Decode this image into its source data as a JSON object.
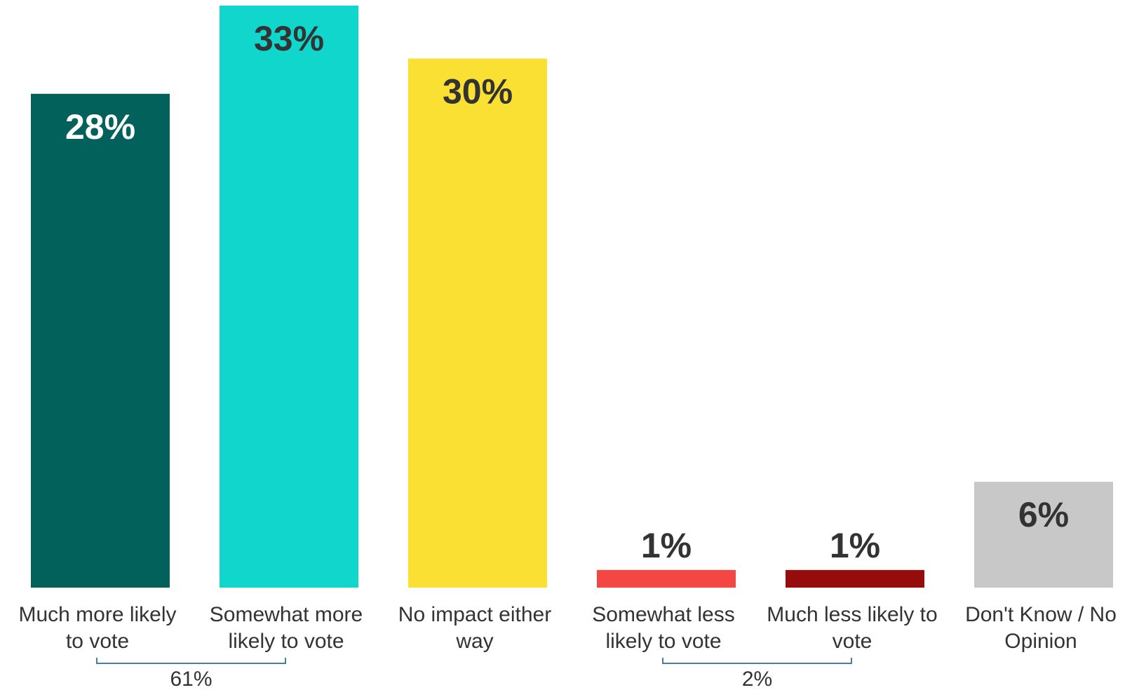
{
  "chart_data": {
    "type": "bar",
    "categories": [
      "Much more likely to vote",
      "Somewhat more likely to vote",
      "No impact either way",
      "Somewhat less likely to vote",
      "Much less likely to vote",
      "Don't Know / No Opinion"
    ],
    "category_lines": [
      [
        "Much more likely",
        "to vote"
      ],
      [
        "Somewhat more",
        "likely to vote"
      ],
      [
        "No impact either",
        "way"
      ],
      [
        "Somewhat less",
        "likely to vote"
      ],
      [
        "Much less likely to",
        "vote"
      ],
      [
        "Don't Know / No",
        "Opinion"
      ]
    ],
    "values": [
      28,
      33,
      30,
      1,
      1,
      6
    ],
    "data_labels": [
      "28%",
      "33%",
      "30%",
      "1%",
      "1%",
      "6%"
    ],
    "colors": [
      "#02615B",
      "#10D6CC",
      "#FBE034",
      "#F44744",
      "#960B0B",
      "#C8C8C8"
    ],
    "label_colors": [
      "#FFFFFF",
      "#333333",
      "#333333",
      "#333333",
      "#333333",
      "#333333"
    ],
    "groups": [
      {
        "label": "61%",
        "from": 0,
        "to": 1
      },
      {
        "label": "2%",
        "from": 3,
        "to": 4
      }
    ],
    "bracket_color": "#4A7FA5",
    "ylim": [
      0,
      33
    ],
    "grid": false,
    "legend": "none",
    "title": "",
    "xlabel": "",
    "ylabel": ""
  }
}
